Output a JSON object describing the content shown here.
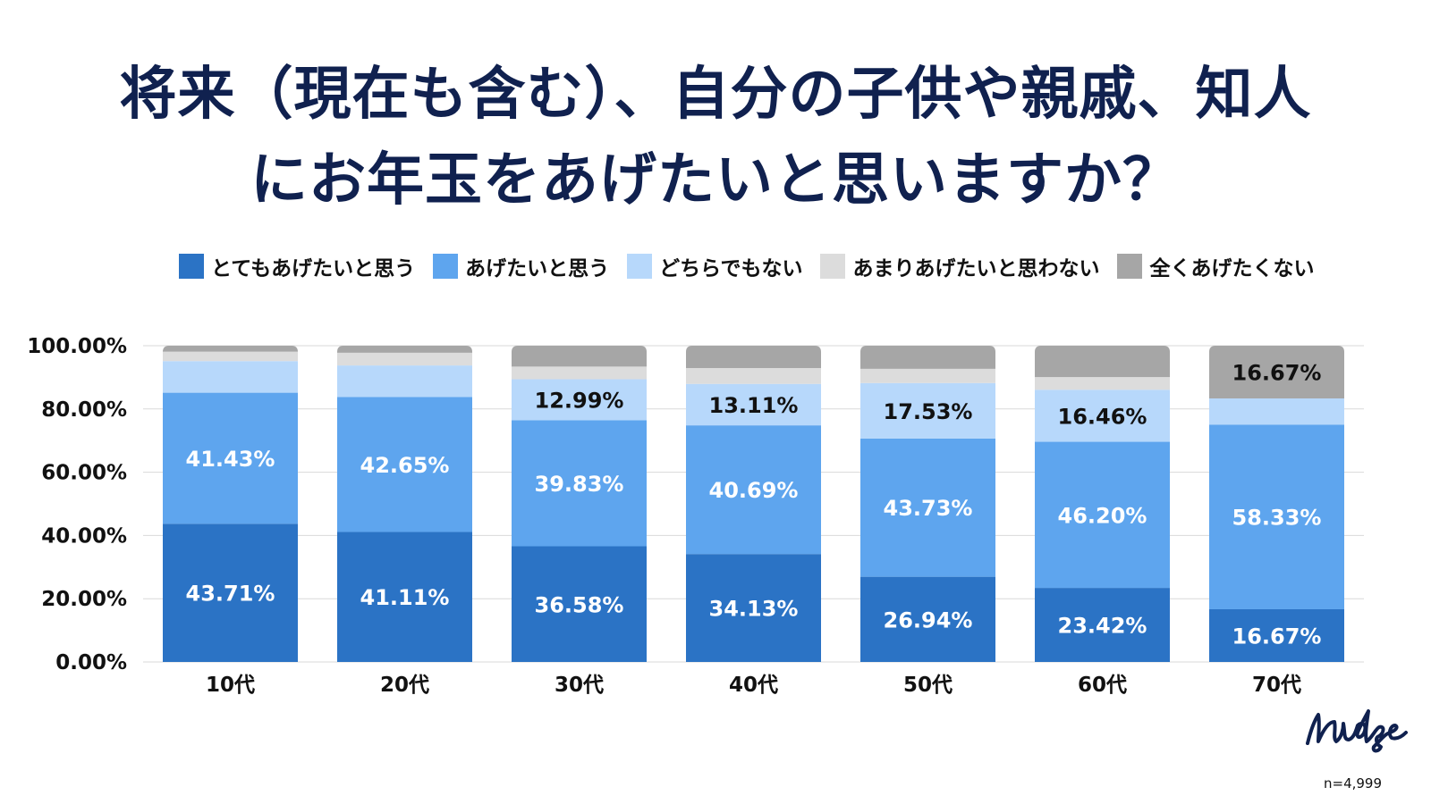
{
  "title": {
    "line1": "将来（現在も含む）、自分の子供や親戚、知人",
    "line2": "にお年玉をあげたいと思いますか？"
  },
  "colors": {
    "very_want": "#2b73c5",
    "want": "#5ea5ee",
    "neutral": "#b7d8fb",
    "not_much": "#dcdcdc",
    "not_at_all": "#a6a6a6",
    "title": "#10214f",
    "grid": "#d9d9d9"
  },
  "chart_data": {
    "type": "bar",
    "stacked": true,
    "categories": [
      "10代",
      "20代",
      "30代",
      "40代",
      "50代",
      "60代",
      "70代"
    ],
    "ylim": [
      0,
      100
    ],
    "yticks": [
      0,
      20,
      40,
      60,
      80,
      100
    ],
    "ytick_labels": [
      "0.00%",
      "20.00%",
      "40.00%",
      "60.00%",
      "80.00%",
      "100.00%"
    ],
    "legend_position": "top",
    "series": [
      {
        "key": "very_want",
        "name": "とてもあげたいと思う",
        "values": [
          43.71,
          41.11,
          36.58,
          34.13,
          26.94,
          23.42,
          16.67
        ],
        "labels": [
          "43.71%",
          "41.11%",
          "36.58%",
          "34.13%",
          "26.94%",
          "23.42%",
          "16.67%"
        ],
        "label_color": "#ffffff"
      },
      {
        "key": "want",
        "name": "あげたいと思う",
        "values": [
          41.43,
          42.65,
          39.83,
          40.69,
          43.73,
          46.2,
          58.33
        ],
        "labels": [
          "41.43%",
          "42.65%",
          "39.83%",
          "40.69%",
          "43.73%",
          "46.20%",
          "58.33%"
        ],
        "label_color": "#ffffff"
      },
      {
        "key": "neutral",
        "name": "どちらでもない",
        "values": [
          10.0,
          10.0,
          12.99,
          13.11,
          17.53,
          16.46,
          8.33
        ],
        "labels": [
          "",
          "",
          "12.99%",
          "13.11%",
          "17.53%",
          "16.46%",
          ""
        ],
        "label_color": "#111111"
      },
      {
        "key": "not_much",
        "name": "あまりあげたいと思わない",
        "values": [
          3.0,
          4.0,
          4.0,
          5.0,
          4.5,
          4.0,
          0.0
        ],
        "labels": [
          "",
          "",
          "",
          "",
          "",
          "",
          ""
        ],
        "label_color": "#111111"
      },
      {
        "key": "not_at_all",
        "name": "全くあげたくない",
        "values": [
          1.86,
          2.24,
          6.6,
          7.07,
          7.3,
          9.92,
          16.67
        ],
        "labels": [
          "",
          "",
          "",
          "",
          "",
          "",
          "16.67%"
        ],
        "label_color": "#111111"
      }
    ]
  },
  "brand": {
    "logo_text": "nudge"
  },
  "footnote": {
    "sample": "n=4,999"
  }
}
